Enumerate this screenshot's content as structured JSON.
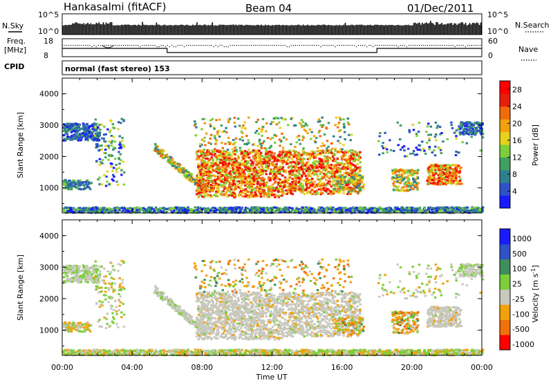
{
  "header": {
    "station": "Hankasalmi (fitACF)",
    "beam": "Beam 04",
    "date": "01/Dec/2011"
  },
  "summary": {
    "left_labels": [
      "N.Sky",
      "Freq.",
      "[MHz]",
      "CPID"
    ],
    "right_labels": [
      "N.Search",
      "Nave"
    ],
    "noise_ticks": [
      "10^5",
      "10^0"
    ],
    "freq_ticks": [
      "18",
      "8"
    ],
    "nave_ticks": [
      "60",
      "0"
    ],
    "cpid_text": "normal (fast stereo) 153"
  },
  "chart_data": [
    {
      "type": "heatmap",
      "title": "",
      "ylabel": "Slant Range [km]",
      "xlabel": "",
      "xlim": [
        0,
        24
      ],
      "ylim": [
        200,
        4500
      ],
      "y_ticks": [
        "1000",
        "2000",
        "3000",
        "4000"
      ],
      "colorbar_label": "Power [dB]",
      "colorbar_ticks": [
        "4",
        "8",
        "12",
        "16",
        "20",
        "24",
        "28"
      ],
      "colorbar_range": [
        0,
        30
      ],
      "colors": [
        "#1a1aff",
        "#2e52c8",
        "#2f7f8f",
        "#3fa060",
        "#7ccf3a",
        "#e6d21c",
        "#f2a10d",
        "#f26b0a",
        "#e81e0c",
        "#ff0000"
      ]
    },
    {
      "type": "heatmap",
      "title": "",
      "ylabel": "Slant Range [km]",
      "xlabel": "Time UT",
      "xlim": [
        0,
        24
      ],
      "ylim": [
        200,
        4500
      ],
      "x_ticks": [
        "00:00",
        "04:00",
        "08:00",
        "12:00",
        "16:00",
        "20:00",
        "00:00"
      ],
      "y_ticks": [
        "1000",
        "2000",
        "3000",
        "4000"
      ],
      "colorbar_label": "Velocity [m s",
      "colorbar_label_sup": "-1",
      "colorbar_label_end": "]",
      "colorbar_ticks": [
        "1000",
        "500",
        "100",
        "25",
        "-25",
        "-100",
        "-500",
        "-1000"
      ],
      "colors": [
        "#1a1aff",
        "#2e52c8",
        "#3f8f5c",
        "#7ccf3a",
        "#c8c8be",
        "#f2a10d",
        "#f2700a",
        "#ff0000"
      ]
    }
  ]
}
